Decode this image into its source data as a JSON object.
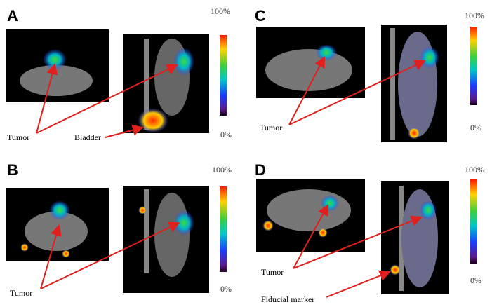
{
  "panels": [
    {
      "letter": "A",
      "scale_max": "100%",
      "scale_min": "0%",
      "annotations": [
        "Tumor",
        "Bladder"
      ]
    },
    {
      "letter": "B",
      "scale_max": "100%",
      "scale_min": "0%",
      "annotations": [
        "Tumor"
      ]
    },
    {
      "letter": "C",
      "scale_max": "100%",
      "scale_min": "0%",
      "annotations": [
        "Tumor"
      ]
    },
    {
      "letter": "D",
      "scale_max": "100%",
      "scale_min": "0%",
      "annotations": [
        "Tumor",
        "Fiducial marker"
      ]
    }
  ]
}
